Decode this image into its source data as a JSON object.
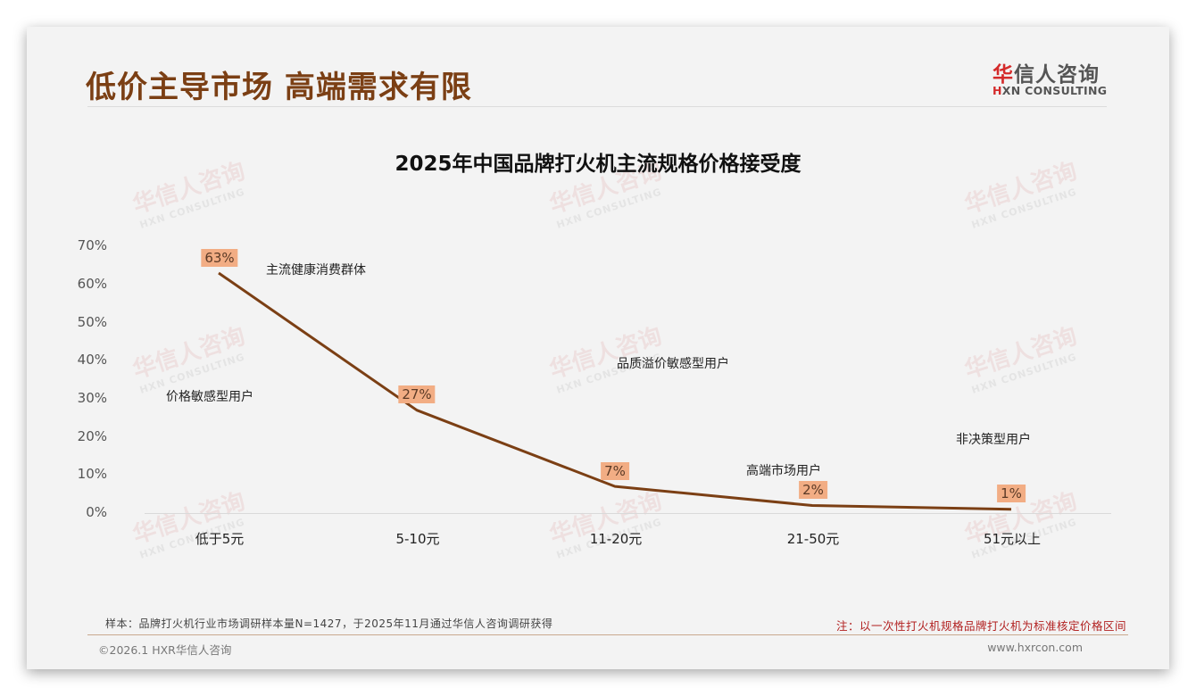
{
  "header": {
    "title": "低价主导市场 高端需求有限",
    "logo_cn_first": "华",
    "logo_cn_rest": "信人咨询",
    "logo_en_first": "H",
    "logo_en_rest": "XN CONSULTING"
  },
  "watermark": {
    "cn": "华信人咨询",
    "en": "HXN CONSULTING"
  },
  "chart_data": {
    "type": "line",
    "title": "2025年中国品牌打火机主流规格价格接受度",
    "xlabel": "",
    "ylabel": "",
    "categories": [
      "低于5元",
      "5-10元",
      "11-20元",
      "21-50元",
      "51元以上"
    ],
    "series": [
      {
        "name": "价格接受度",
        "values": [
          63,
          27,
          7,
          2,
          1
        ],
        "labels": [
          "63%",
          "27%",
          "7%",
          "2%",
          "1%"
        ],
        "color": "#7b3f14"
      }
    ],
    "ylim": [
      0,
      70
    ],
    "yticks": [
      "0%",
      "10%",
      "20%",
      "30%",
      "40%",
      "50%",
      "60%",
      "70%"
    ],
    "grid": false,
    "legend": "none",
    "label_bg_color": "#f2ad84",
    "annotations": [
      {
        "text": "主流健康消费群体"
      },
      {
        "text": "价格敏感型用户"
      },
      {
        "text": "品质溢价敏感型用户"
      },
      {
        "text": "高端市场用户"
      },
      {
        "text": "非决策型用户"
      }
    ]
  },
  "footer": {
    "sample": "样本：品牌打火机行业市场调研样本量N=1427，于2025年11月通过华信人咨询调研获得",
    "note": "注：以一次性打火机规格品牌打火机为标准核定价格区间",
    "copyright": "©2026.1 HXR华信人咨询",
    "website": "www.hxrcon.com"
  }
}
